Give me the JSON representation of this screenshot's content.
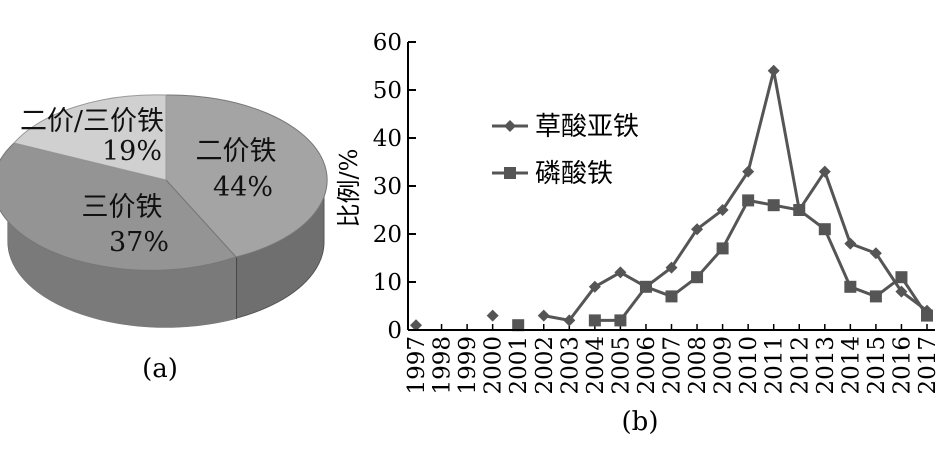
{
  "chart_data": [
    {
      "type": "pie",
      "panel_label": "(a)",
      "slices": [
        {
          "label": "二价/三价铁",
          "value": 19,
          "value_label": "19%",
          "color": "#cfcfcf"
        },
        {
          "label": "二价铁",
          "value": 44,
          "value_label": "44%",
          "color": "#a6a6a6"
        },
        {
          "label": "三价铁",
          "value": 37,
          "value_label": "37%",
          "color": "#8f8f8f"
        }
      ],
      "three_d": true
    },
    {
      "type": "line",
      "panel_label": "(b)",
      "ylabel": "比例/%",
      "xlabel": "",
      "ylim": [
        0,
        60
      ],
      "yticks": [
        0,
        10,
        20,
        30,
        40,
        50,
        60
      ],
      "categories": [
        "1997",
        "1998",
        "1999",
        "2000",
        "2001",
        "2002",
        "2003",
        "2004",
        "2005",
        "2006",
        "2007",
        "2008",
        "2009",
        "2010",
        "2011",
        "2012",
        "2013",
        "2014",
        "2015",
        "2016",
        "2017"
      ],
      "legend_position": "upper-left",
      "series": [
        {
          "name": "草酸亚铁",
          "marker": "diamond",
          "color": "#555555",
          "values": [
            1,
            null,
            null,
            3,
            null,
            3,
            2,
            9,
            12,
            9,
            13,
            21,
            25,
            33,
            54,
            25,
            33,
            18,
            16,
            8,
            4
          ]
        },
        {
          "name": "磷酸铁",
          "marker": "square",
          "color": "#555555",
          "values": [
            null,
            null,
            null,
            null,
            1,
            null,
            null,
            2,
            2,
            9,
            7,
            11,
            17,
            27,
            26,
            25,
            21,
            9,
            7,
            11,
            3
          ]
        }
      ]
    }
  ]
}
